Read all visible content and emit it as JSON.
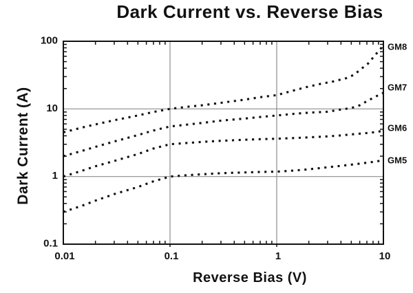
{
  "title": "Dark Current vs. Reverse Bias",
  "chart_data": {
    "type": "line",
    "title": "Dark Current vs. Reverse Bias",
    "xlabel": "Reverse Bias (V)",
    "ylabel": "Dark Current (A)",
    "x_scale": "log",
    "y_scale": "log",
    "xlim": [
      0.01,
      10
    ],
    "ylim": [
      0.1,
      100
    ],
    "x_ticks": {
      "values": [
        0.01,
        0.1,
        1,
        10
      ],
      "labels": [
        "0.01",
        "0.1",
        "1",
        "10"
      ]
    },
    "y_ticks": {
      "values": [
        0.1,
        1,
        10,
        100
      ],
      "labels": [
        "0.1",
        "1",
        "10",
        "100"
      ]
    },
    "grid": {
      "x_lines": [
        0.1,
        1
      ],
      "y_lines": [
        1,
        10
      ],
      "color": "#8c8c8c"
    },
    "line_style": "dotted",
    "line_color": "#111111",
    "axis_color": "#111111",
    "legend_position": "right-of-plot",
    "series": [
      {
        "name": "GM8",
        "points": [
          [
            0.01,
            4.5
          ],
          [
            0.015,
            5.3
          ],
          [
            0.02,
            5.9
          ],
          [
            0.03,
            6.8
          ],
          [
            0.05,
            8.0
          ],
          [
            0.07,
            9.0
          ],
          [
            0.1,
            10
          ],
          [
            0.15,
            10.8
          ],
          [
            0.2,
            11.3
          ],
          [
            0.3,
            12.3
          ],
          [
            0.5,
            13.7
          ],
          [
            0.7,
            14.9
          ],
          [
            1,
            16
          ],
          [
            1.4,
            18.5
          ],
          [
            1.9,
            21
          ],
          [
            2.6,
            23.5
          ],
          [
            3.4,
            25.5
          ],
          [
            4.5,
            28.5
          ],
          [
            5.3,
            32
          ],
          [
            6.2,
            39
          ],
          [
            7.2,
            47
          ],
          [
            8.4,
            63
          ],
          [
            10,
            86
          ]
        ]
      },
      {
        "name": "GM7",
        "points": [
          [
            0.01,
            2.0
          ],
          [
            0.015,
            2.4
          ],
          [
            0.02,
            2.75
          ],
          [
            0.03,
            3.3
          ],
          [
            0.05,
            4.1
          ],
          [
            0.07,
            4.8
          ],
          [
            0.1,
            5.5
          ],
          [
            0.15,
            5.9
          ],
          [
            0.2,
            6.2
          ],
          [
            0.3,
            6.7
          ],
          [
            0.5,
            7.2
          ],
          [
            0.7,
            7.6
          ],
          [
            1,
            8.0
          ],
          [
            1.5,
            8.5
          ],
          [
            2,
            8.8
          ],
          [
            3,
            9.1
          ],
          [
            4,
            9.8
          ],
          [
            5,
            10.3
          ],
          [
            6,
            11.3
          ],
          [
            7,
            13
          ],
          [
            8.5,
            15.3
          ],
          [
            10,
            17.3
          ]
        ]
      },
      {
        "name": "GM6",
        "points": [
          [
            0.01,
            1.0
          ],
          [
            0.015,
            1.22
          ],
          [
            0.02,
            1.42
          ],
          [
            0.03,
            1.7
          ],
          [
            0.05,
            2.15
          ],
          [
            0.07,
            2.6
          ],
          [
            0.1,
            3.0
          ],
          [
            0.15,
            3.15
          ],
          [
            0.2,
            3.25
          ],
          [
            0.3,
            3.38
          ],
          [
            0.5,
            3.5
          ],
          [
            0.7,
            3.57
          ],
          [
            1,
            3.62
          ],
          [
            1.5,
            3.72
          ],
          [
            2,
            3.8
          ],
          [
            3,
            3.92
          ],
          [
            4,
            4.05
          ],
          [
            5,
            4.2
          ],
          [
            7,
            4.4
          ],
          [
            8.5,
            4.55
          ],
          [
            10,
            4.75
          ]
        ]
      },
      {
        "name": "GM5",
        "points": [
          [
            0.01,
            0.3
          ],
          [
            0.015,
            0.37
          ],
          [
            0.02,
            0.44
          ],
          [
            0.03,
            0.55
          ],
          [
            0.05,
            0.7
          ],
          [
            0.07,
            0.85
          ],
          [
            0.1,
            1.0
          ],
          [
            0.15,
            1.05
          ],
          [
            0.2,
            1.08
          ],
          [
            0.3,
            1.12
          ],
          [
            0.5,
            1.15
          ],
          [
            0.7,
            1.17
          ],
          [
            1,
            1.18
          ],
          [
            1.5,
            1.23
          ],
          [
            2,
            1.28
          ],
          [
            3,
            1.37
          ],
          [
            4,
            1.44
          ],
          [
            5,
            1.5
          ],
          [
            7,
            1.6
          ],
          [
            8.5,
            1.67
          ],
          [
            10,
            1.75
          ]
        ]
      }
    ]
  }
}
